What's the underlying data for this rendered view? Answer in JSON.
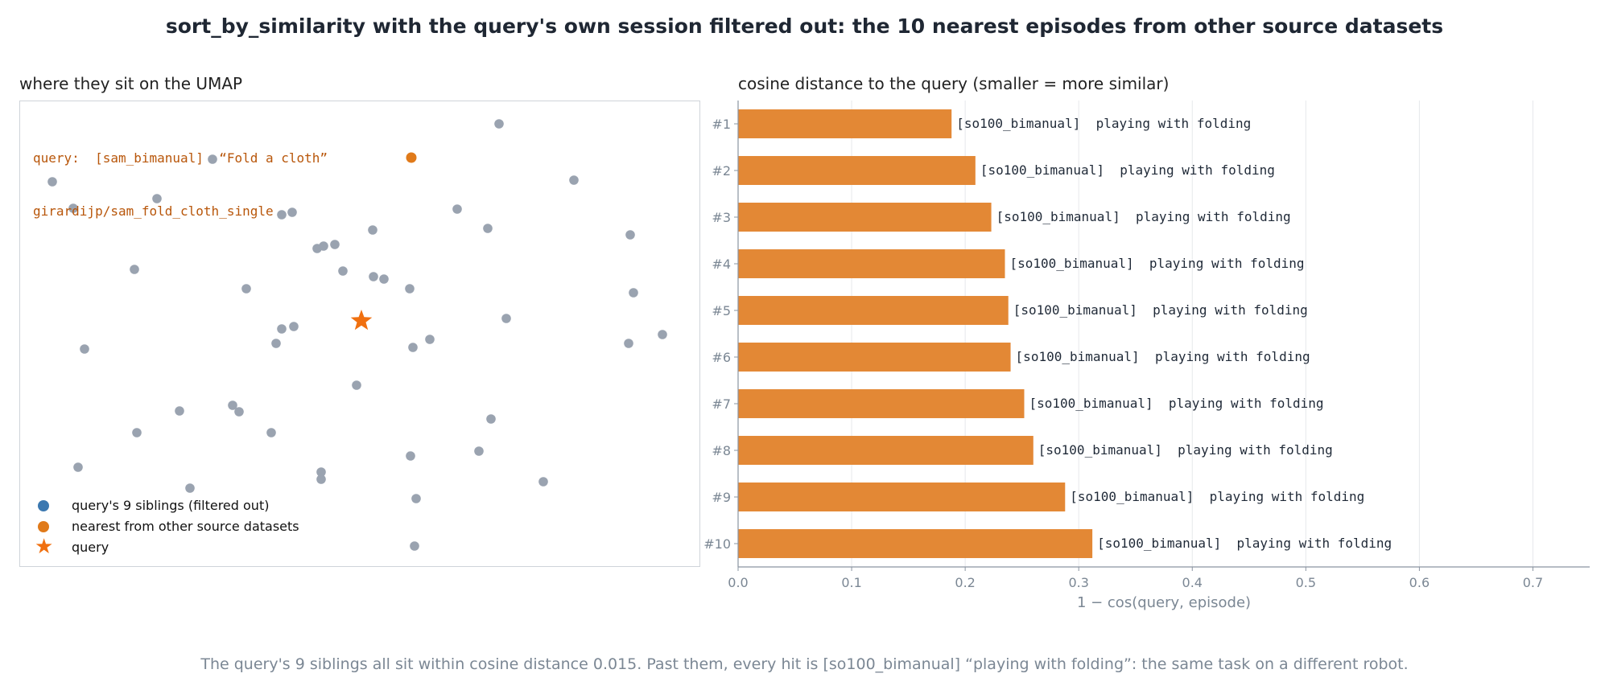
{
  "title": "sort_by_similarity with the query's own session filtered out: the 10 nearest episodes from other source datasets",
  "caption": "The query's 9 siblings all sit within cosine distance 0.015. Past them, every hit is [so100_bimanual] “playing with folding”: the same task on a different robot.",
  "colors": {
    "sibling": "#3b78b0",
    "nearest": "#e07a1a",
    "query": "#f07010",
    "bar": "#e38835",
    "background_point": "#9aa3b0",
    "annotation": "#b8560a"
  },
  "chart_data": [
    {
      "type": "scatter",
      "title": "where they sit on the UMAP",
      "annotation_lines": [
        "query:  [sam_bimanual]  “Fold a cloth”",
        "girardijp/sam_fold_cloth_single"
      ],
      "legend": {
        "placement": "lower-left",
        "entries": [
          {
            "label": "query's 9 siblings (filtered out)",
            "marker": "dot",
            "color": "#3b78b0"
          },
          {
            "label": "nearest from other source datasets",
            "marker": "dot",
            "color": "#e07a1a"
          },
          {
            "label": "query",
            "marker": "star",
            "color": "#f07010"
          }
        ]
      },
      "axes": "hidden",
      "xlim": [
        0,
        846
      ],
      "ylim": [
        0,
        580
      ],
      "background_points": [
        [
          595,
          28
        ],
        [
          40,
          100
        ],
        [
          66,
          133
        ],
        [
          170,
          121
        ],
        [
          239,
          72
        ],
        [
          688,
          98
        ],
        [
          325,
          141
        ],
        [
          338,
          138
        ],
        [
          543,
          134
        ],
        [
          581,
          158
        ],
        [
          438,
          160
        ],
        [
          758,
          166
        ],
        [
          369,
          183
        ],
        [
          377,
          180
        ],
        [
          391,
          178
        ],
        [
          142,
          209
        ],
        [
          281,
          233
        ],
        [
          401,
          211
        ],
        [
          439,
          218
        ],
        [
          452,
          221
        ],
        [
          484,
          233
        ],
        [
          762,
          238
        ],
        [
          325,
          283
        ],
        [
          340,
          280
        ],
        [
          604,
          270
        ],
        [
          80,
          308
        ],
        [
          318,
          301
        ],
        [
          509,
          296
        ],
        [
          488,
          306
        ],
        [
          756,
          301
        ],
        [
          798,
          290
        ],
        [
          418,
          353
        ],
        [
          264,
          378
        ],
        [
          272,
          386
        ],
        [
          198,
          385
        ],
        [
          585,
          395
        ],
        [
          145,
          412
        ],
        [
          312,
          412
        ],
        [
          570,
          435
        ],
        [
          485,
          441
        ],
        [
          374,
          461
        ],
        [
          374,
          470
        ],
        [
          72,
          455
        ],
        [
          211,
          481
        ],
        [
          650,
          473
        ],
        [
          492,
          494
        ],
        [
          490,
          553
        ]
      ],
      "nearest_points": [
        [
          486,
          70
        ]
      ],
      "query_point": [
        424,
        273
      ]
    },
    {
      "type": "bar",
      "orientation": "horizontal",
      "title": "cosine distance to the query (smaller = more similar)",
      "xlabel": "1 − cos(query, episode)",
      "xlim": [
        0,
        0.75
      ],
      "xticks": [
        "0.0",
        "0.1",
        "0.2",
        "0.3",
        "0.4",
        "0.5",
        "0.6",
        "0.7"
      ],
      "grid": "vertical",
      "categories": [
        "#1",
        "#2",
        "#3",
        "#4",
        "#5",
        "#6",
        "#7",
        "#8",
        "#9",
        "#10"
      ],
      "values": [
        0.188,
        0.209,
        0.223,
        0.235,
        0.238,
        0.24,
        0.252,
        0.26,
        0.288,
        0.312
      ],
      "bar_labels": [
        "[so100_bimanual]  playing with folding",
        "[so100_bimanual]  playing with folding",
        "[so100_bimanual]  playing with folding",
        "[so100_bimanual]  playing with folding",
        "[so100_bimanual]  playing with folding",
        "[so100_bimanual]  playing with folding",
        "[so100_bimanual]  playing with folding",
        "[so100_bimanual]  playing with folding",
        "[so100_bimanual]  playing with folding",
        "[so100_bimanual]  playing with folding"
      ]
    }
  ]
}
